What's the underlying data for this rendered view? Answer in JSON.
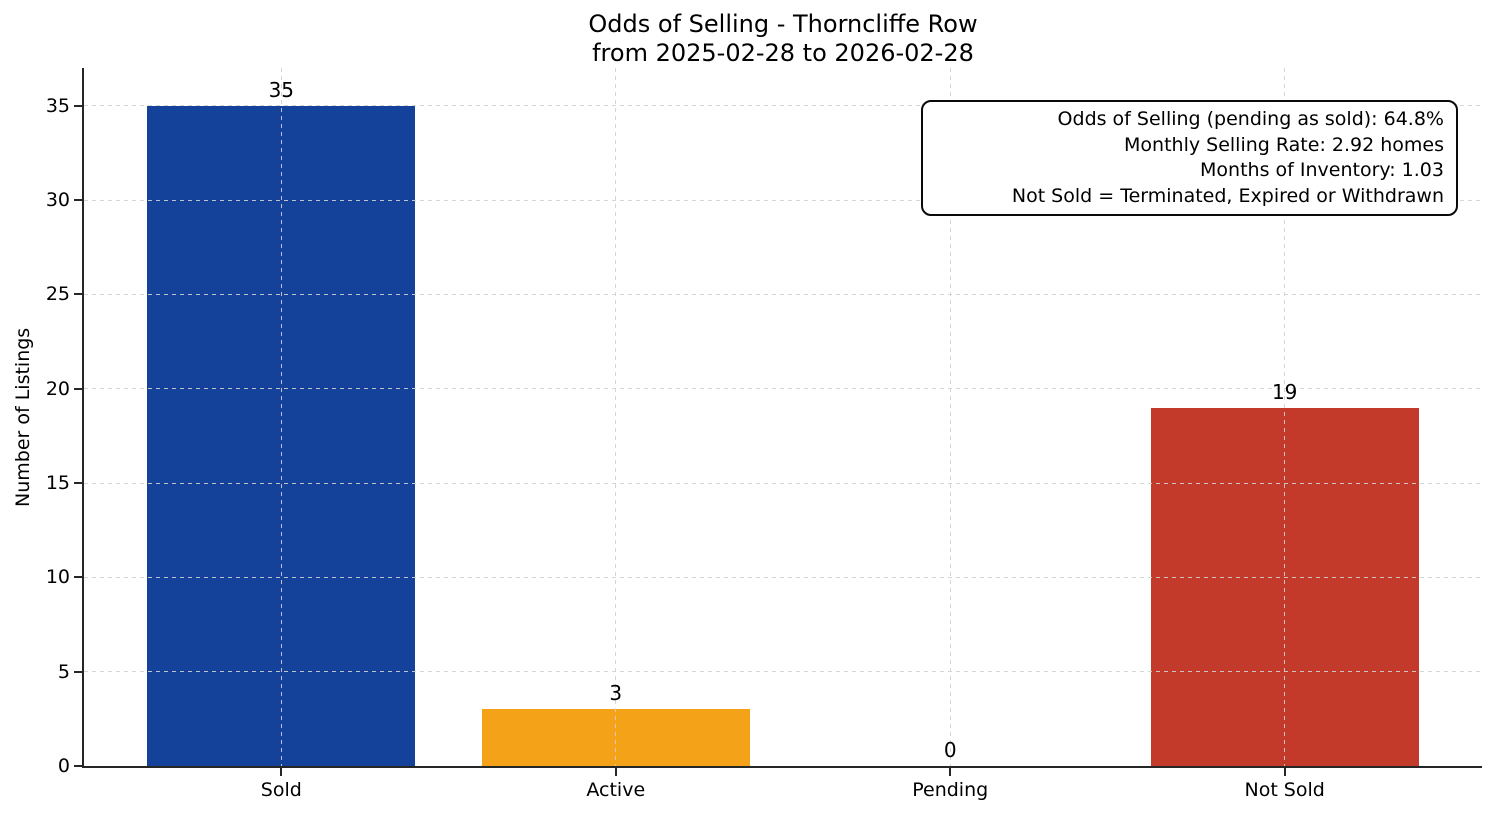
{
  "chart_data": {
    "type": "bar",
    "title": "Odds of Selling - Thorncliffe Row",
    "subtitle": "from 2025-02-28 to 2026-02-28",
    "categories": [
      "Sold",
      "Active",
      "Pending",
      "Not Sold"
    ],
    "values": [
      35,
      3,
      0,
      19
    ],
    "bar_colors": [
      "#14429A",
      "#F4A318",
      "#14429A",
      "#C33A2B"
    ],
    "xlabel": "",
    "ylabel": "Number of Listings",
    "yticks": [
      0,
      5,
      10,
      15,
      20,
      25,
      30,
      35
    ],
    "ylim": [
      0,
      37
    ],
    "grid": "dashed-lightgray-over-bars",
    "legend_position": "none",
    "stats_box": [
      "Odds of Selling (pending as sold): 64.8%",
      "Monthly Selling Rate: 2.92 homes",
      "Months of Inventory: 1.03",
      "Not Sold = Terminated, Expired or Withdrawn"
    ]
  }
}
